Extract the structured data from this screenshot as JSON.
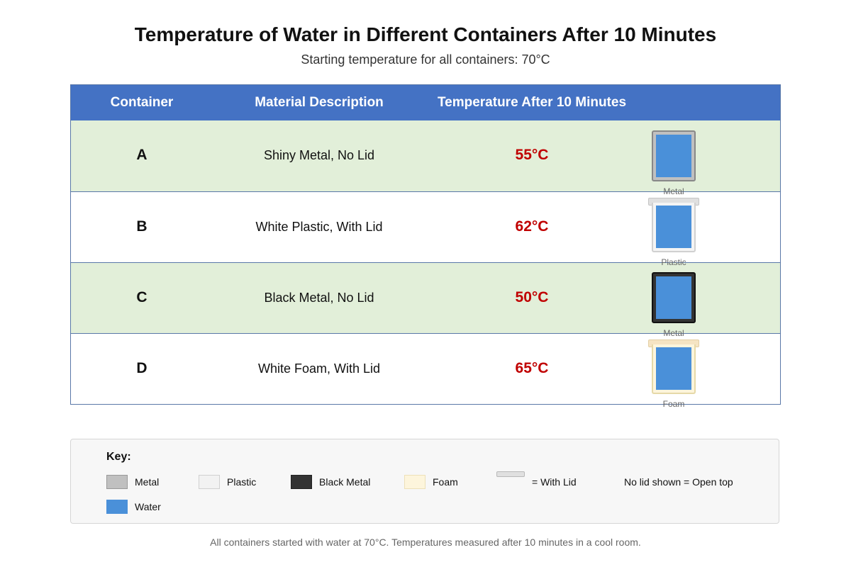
{
  "title": "Temperature of Water in Different Containers After 10 Minutes",
  "subtitle": "Starting temperature for all containers: 70°C",
  "table": {
    "headers": [
      "Container",
      "Material Description",
      "Temperature After 10 Minutes"
    ],
    "rows": [
      {
        "container": "A",
        "description": "Shiny Metal, No Lid",
        "temperature": "55°C",
        "icon_label": "Metal",
        "material": "metal",
        "lid": false
      },
      {
        "container": "B",
        "description": "White Plastic, With Lid",
        "temperature": "62°C",
        "icon_label": "Plastic",
        "material": "plastic",
        "lid": true
      },
      {
        "container": "C",
        "description": "Black Metal, No Lid",
        "temperature": "50°C",
        "icon_label": "Metal",
        "material": "black-metal",
        "lid": false
      },
      {
        "container": "D",
        "description": "White Foam, With Lid",
        "temperature": "65°C",
        "icon_label": "Foam",
        "material": "foam",
        "lid": true
      }
    ]
  },
  "key": {
    "title": "Key:",
    "items": [
      {
        "label": "Metal",
        "color": "#c0c0c0"
      },
      {
        "label": "Plastic",
        "color": "#f2f2f2"
      },
      {
        "label": "Black Metal",
        "color": "#333333"
      },
      {
        "label": "Foam",
        "color": "#fdf5dc"
      },
      {
        "label": "= With Lid",
        "color": "#e0e0e0"
      },
      {
        "label": "Water",
        "color": "#4a90d9"
      }
    ],
    "note": "No lid shown = Open top"
  },
  "footnote": "All containers started with water at 70°C. Temperatures measured after 10 minutes in a cool room.",
  "colors": {
    "header_bg": "#4472c4",
    "row_shade": "#e2efd9",
    "temperature_text": "#c00000",
    "water": "#4a90d9"
  }
}
